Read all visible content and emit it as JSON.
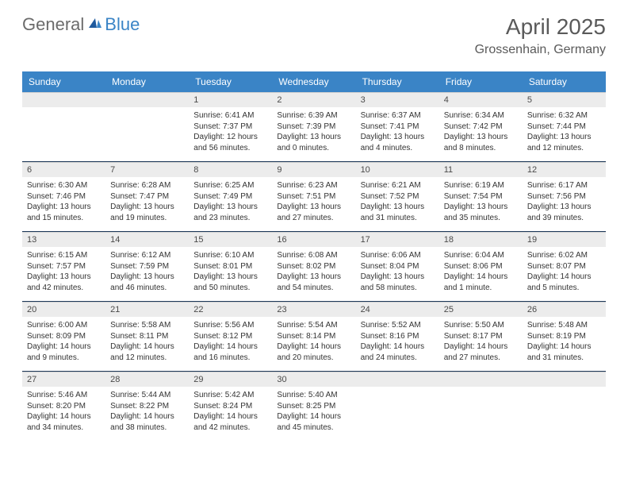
{
  "logo": {
    "general": "General",
    "blue": "Blue"
  },
  "title": "April 2025",
  "location": "Grossenhain, Germany",
  "weekdays": [
    "Sunday",
    "Monday",
    "Tuesday",
    "Wednesday",
    "Thursday",
    "Friday",
    "Saturday"
  ],
  "colors": {
    "header_bar": "#3a84c6",
    "daynum_bg": "#ececec",
    "text": "#333333",
    "title_text": "#5a5a5a",
    "divider": "#1f3a5a"
  },
  "weeks": [
    [
      {
        "n": "",
        "sr": "",
        "ss": "",
        "dl1": "",
        "dl2": ""
      },
      {
        "n": "",
        "sr": "",
        "ss": "",
        "dl1": "",
        "dl2": ""
      },
      {
        "n": "1",
        "sr": "Sunrise: 6:41 AM",
        "ss": "Sunset: 7:37 PM",
        "dl1": "Daylight: 12 hours",
        "dl2": "and 56 minutes."
      },
      {
        "n": "2",
        "sr": "Sunrise: 6:39 AM",
        "ss": "Sunset: 7:39 PM",
        "dl1": "Daylight: 13 hours",
        "dl2": "and 0 minutes."
      },
      {
        "n": "3",
        "sr": "Sunrise: 6:37 AM",
        "ss": "Sunset: 7:41 PM",
        "dl1": "Daylight: 13 hours",
        "dl2": "and 4 minutes."
      },
      {
        "n": "4",
        "sr": "Sunrise: 6:34 AM",
        "ss": "Sunset: 7:42 PM",
        "dl1": "Daylight: 13 hours",
        "dl2": "and 8 minutes."
      },
      {
        "n": "5",
        "sr": "Sunrise: 6:32 AM",
        "ss": "Sunset: 7:44 PM",
        "dl1": "Daylight: 13 hours",
        "dl2": "and 12 minutes."
      }
    ],
    [
      {
        "n": "6",
        "sr": "Sunrise: 6:30 AM",
        "ss": "Sunset: 7:46 PM",
        "dl1": "Daylight: 13 hours",
        "dl2": "and 15 minutes."
      },
      {
        "n": "7",
        "sr": "Sunrise: 6:28 AM",
        "ss": "Sunset: 7:47 PM",
        "dl1": "Daylight: 13 hours",
        "dl2": "and 19 minutes."
      },
      {
        "n": "8",
        "sr": "Sunrise: 6:25 AM",
        "ss": "Sunset: 7:49 PM",
        "dl1": "Daylight: 13 hours",
        "dl2": "and 23 minutes."
      },
      {
        "n": "9",
        "sr": "Sunrise: 6:23 AM",
        "ss": "Sunset: 7:51 PM",
        "dl1": "Daylight: 13 hours",
        "dl2": "and 27 minutes."
      },
      {
        "n": "10",
        "sr": "Sunrise: 6:21 AM",
        "ss": "Sunset: 7:52 PM",
        "dl1": "Daylight: 13 hours",
        "dl2": "and 31 minutes."
      },
      {
        "n": "11",
        "sr": "Sunrise: 6:19 AM",
        "ss": "Sunset: 7:54 PM",
        "dl1": "Daylight: 13 hours",
        "dl2": "and 35 minutes."
      },
      {
        "n": "12",
        "sr": "Sunrise: 6:17 AM",
        "ss": "Sunset: 7:56 PM",
        "dl1": "Daylight: 13 hours",
        "dl2": "and 39 minutes."
      }
    ],
    [
      {
        "n": "13",
        "sr": "Sunrise: 6:15 AM",
        "ss": "Sunset: 7:57 PM",
        "dl1": "Daylight: 13 hours",
        "dl2": "and 42 minutes."
      },
      {
        "n": "14",
        "sr": "Sunrise: 6:12 AM",
        "ss": "Sunset: 7:59 PM",
        "dl1": "Daylight: 13 hours",
        "dl2": "and 46 minutes."
      },
      {
        "n": "15",
        "sr": "Sunrise: 6:10 AM",
        "ss": "Sunset: 8:01 PM",
        "dl1": "Daylight: 13 hours",
        "dl2": "and 50 minutes."
      },
      {
        "n": "16",
        "sr": "Sunrise: 6:08 AM",
        "ss": "Sunset: 8:02 PM",
        "dl1": "Daylight: 13 hours",
        "dl2": "and 54 minutes."
      },
      {
        "n": "17",
        "sr": "Sunrise: 6:06 AM",
        "ss": "Sunset: 8:04 PM",
        "dl1": "Daylight: 13 hours",
        "dl2": "and 58 minutes."
      },
      {
        "n": "18",
        "sr": "Sunrise: 6:04 AM",
        "ss": "Sunset: 8:06 PM",
        "dl1": "Daylight: 14 hours",
        "dl2": "and 1 minute."
      },
      {
        "n": "19",
        "sr": "Sunrise: 6:02 AM",
        "ss": "Sunset: 8:07 PM",
        "dl1": "Daylight: 14 hours",
        "dl2": "and 5 minutes."
      }
    ],
    [
      {
        "n": "20",
        "sr": "Sunrise: 6:00 AM",
        "ss": "Sunset: 8:09 PM",
        "dl1": "Daylight: 14 hours",
        "dl2": "and 9 minutes."
      },
      {
        "n": "21",
        "sr": "Sunrise: 5:58 AM",
        "ss": "Sunset: 8:11 PM",
        "dl1": "Daylight: 14 hours",
        "dl2": "and 12 minutes."
      },
      {
        "n": "22",
        "sr": "Sunrise: 5:56 AM",
        "ss": "Sunset: 8:12 PM",
        "dl1": "Daylight: 14 hours",
        "dl2": "and 16 minutes."
      },
      {
        "n": "23",
        "sr": "Sunrise: 5:54 AM",
        "ss": "Sunset: 8:14 PM",
        "dl1": "Daylight: 14 hours",
        "dl2": "and 20 minutes."
      },
      {
        "n": "24",
        "sr": "Sunrise: 5:52 AM",
        "ss": "Sunset: 8:16 PM",
        "dl1": "Daylight: 14 hours",
        "dl2": "and 24 minutes."
      },
      {
        "n": "25",
        "sr": "Sunrise: 5:50 AM",
        "ss": "Sunset: 8:17 PM",
        "dl1": "Daylight: 14 hours",
        "dl2": "and 27 minutes."
      },
      {
        "n": "26",
        "sr": "Sunrise: 5:48 AM",
        "ss": "Sunset: 8:19 PM",
        "dl1": "Daylight: 14 hours",
        "dl2": "and 31 minutes."
      }
    ],
    [
      {
        "n": "27",
        "sr": "Sunrise: 5:46 AM",
        "ss": "Sunset: 8:20 PM",
        "dl1": "Daylight: 14 hours",
        "dl2": "and 34 minutes."
      },
      {
        "n": "28",
        "sr": "Sunrise: 5:44 AM",
        "ss": "Sunset: 8:22 PM",
        "dl1": "Daylight: 14 hours",
        "dl2": "and 38 minutes."
      },
      {
        "n": "29",
        "sr": "Sunrise: 5:42 AM",
        "ss": "Sunset: 8:24 PM",
        "dl1": "Daylight: 14 hours",
        "dl2": "and 42 minutes."
      },
      {
        "n": "30",
        "sr": "Sunrise: 5:40 AM",
        "ss": "Sunset: 8:25 PM",
        "dl1": "Daylight: 14 hours",
        "dl2": "and 45 minutes."
      },
      {
        "n": "",
        "sr": "",
        "ss": "",
        "dl1": "",
        "dl2": ""
      },
      {
        "n": "",
        "sr": "",
        "ss": "",
        "dl1": "",
        "dl2": ""
      },
      {
        "n": "",
        "sr": "",
        "ss": "",
        "dl1": "",
        "dl2": ""
      }
    ]
  ]
}
